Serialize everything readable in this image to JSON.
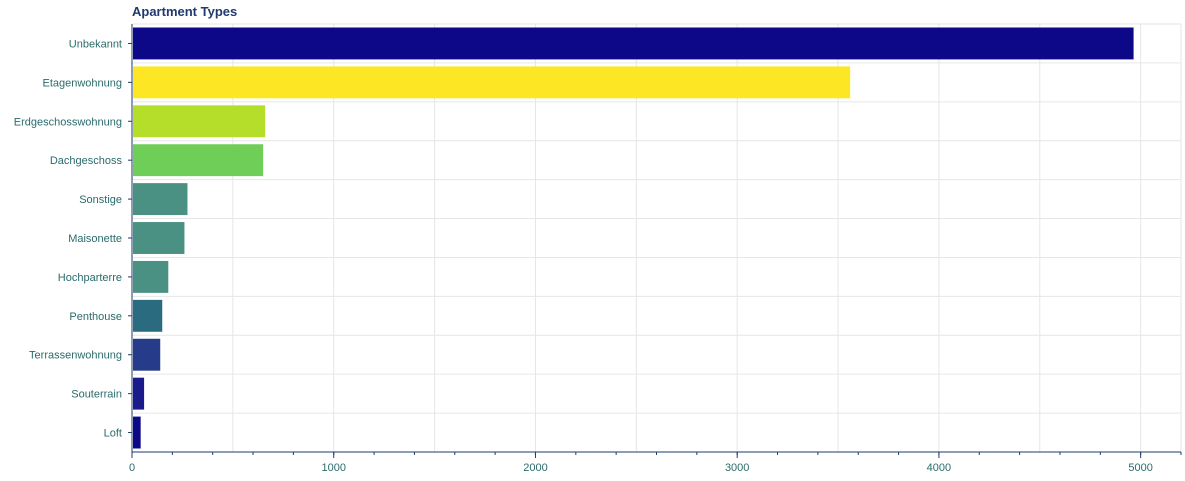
{
  "chart_data": {
    "type": "bar",
    "orientation": "horizontal",
    "title": "Apartment Types",
    "xlabel": "",
    "ylabel": "",
    "xlim": [
      0,
      5200
    ],
    "grid": true,
    "categories": [
      "Unbekannt",
      "Etagenwohnung",
      "Erdgeschosswohnung",
      "Dachgeschoss",
      "Sonstige",
      "Maisonette",
      "Hochparterre",
      "Penthouse",
      "Terrassenwohnung",
      "Souterrain",
      "Loft"
    ],
    "values": [
      4960,
      3555,
      655,
      645,
      270,
      255,
      175,
      145,
      135,
      55,
      38
    ],
    "colors": [
      "#0d0887",
      "#fde725",
      "#b5de2b",
      "#6ece58",
      "#4a9184",
      "#4a9184",
      "#4a9184",
      "#2b6b80",
      "#263c8a",
      "#1a1a8c",
      "#0d0887"
    ],
    "xticks": [
      0,
      1000,
      2000,
      3000,
      4000,
      5000
    ]
  }
}
